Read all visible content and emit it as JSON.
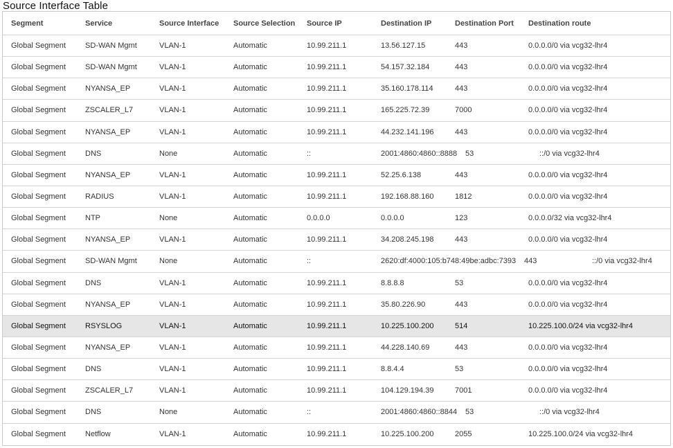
{
  "title": "Source Interface Table",
  "columns": [
    "Segment",
    "Service",
    "Source Interface",
    "Source Selection",
    "Source IP",
    "Destination IP",
    "Destination Port",
    "Destination route"
  ],
  "rows": [
    {
      "segment": "Global Segment",
      "service": "SD-WAN Mgmt",
      "iface": "VLAN-1",
      "selection": "Automatic",
      "src_ip": "10.99.211.1",
      "dst_ip": "13.56.127.15",
      "port": "443",
      "route": "0.0.0.0/0 via vcg32-lhr4"
    },
    {
      "segment": "Global Segment",
      "service": "SD-WAN Mgmt",
      "iface": "VLAN-1",
      "selection": "Automatic",
      "src_ip": "10.99.211.1",
      "dst_ip": "54.157.32.184",
      "port": "443",
      "route": "0.0.0.0/0 via vcg32-lhr4"
    },
    {
      "segment": "Global Segment",
      "service": "NYANSA_EP",
      "iface": "VLAN-1",
      "selection": "Automatic",
      "src_ip": "10.99.211.1",
      "dst_ip": "35.160.178.114",
      "port": "443",
      "route": "0.0.0.0/0 via vcg32-lhr4"
    },
    {
      "segment": "Global Segment",
      "service": "ZSCALER_L7",
      "iface": "VLAN-1",
      "selection": "Automatic",
      "src_ip": "10.99.211.1",
      "dst_ip": "165.225.72.39",
      "port": "7000",
      "route": "0.0.0.0/0 via vcg32-lhr4"
    },
    {
      "segment": "Global Segment",
      "service": "NYANSA_EP",
      "iface": "VLAN-1",
      "selection": "Automatic",
      "src_ip": "10.99.211.1",
      "dst_ip": "44.232.141.196",
      "port": "443",
      "route": "0.0.0.0/0 via vcg32-lhr4"
    },
    {
      "segment": "Global Segment",
      "service": "DNS",
      "iface": "None",
      "selection": "Automatic",
      "src_ip": "::",
      "dst_ip": "2001:4860:4860::8888",
      "port": "53",
      "route": "::/0 via vcg32-lhr4"
    },
    {
      "segment": "Global Segment",
      "service": "NYANSA_EP",
      "iface": "VLAN-1",
      "selection": "Automatic",
      "src_ip": "10.99.211.1",
      "dst_ip": "52.25.6.138",
      "port": "443",
      "route": "0.0.0.0/0 via vcg32-lhr4"
    },
    {
      "segment": "Global Segment",
      "service": "RADIUS",
      "iface": "VLAN-1",
      "selection": "Automatic",
      "src_ip": "10.99.211.1",
      "dst_ip": "192.168.88.160",
      "port": "1812",
      "route": "0.0.0.0/0 via vcg32-lhr4"
    },
    {
      "segment": "Global Segment",
      "service": "NTP",
      "iface": "None",
      "selection": "Automatic",
      "src_ip": "0.0.0.0",
      "dst_ip": "0.0.0.0",
      "port": "123",
      "route": "0.0.0.0/32 via vcg32-lhr4"
    },
    {
      "segment": "Global Segment",
      "service": "NYANSA_EP",
      "iface": "VLAN-1",
      "selection": "Automatic",
      "src_ip": "10.99.211.1",
      "dst_ip": "34.208.245.198",
      "port": "443",
      "route": "0.0.0.0/0 via vcg32-lhr4"
    },
    {
      "segment": "Global Segment",
      "service": "SD-WAN Mgmt",
      "iface": "None",
      "selection": "Automatic",
      "src_ip": "::",
      "dst_ip": "2620:df:4000:105:b748:49be:adbc:7393",
      "port": "443",
      "route": "::/0 via vcg32-lhr4"
    },
    {
      "segment": "Global Segment",
      "service": "DNS",
      "iface": "VLAN-1",
      "selection": "Automatic",
      "src_ip": "10.99.211.1",
      "dst_ip": "8.8.8.8",
      "port": "53",
      "route": "0.0.0.0/0 via vcg32-lhr4"
    },
    {
      "segment": "Global Segment",
      "service": "NYANSA_EP",
      "iface": "VLAN-1",
      "selection": "Automatic",
      "src_ip": "10.99.211.1",
      "dst_ip": "35.80.226.90",
      "port": "443",
      "route": "0.0.0.0/0 via vcg32-lhr4"
    },
    {
      "segment": "Global Segment",
      "service": "RSYSLOG",
      "iface": "VLAN-1",
      "selection": "Automatic",
      "src_ip": "10.99.211.1",
      "dst_ip": "10.225.100.200",
      "port": "514",
      "route": "10.225.100.0/24 via vcg32-lhr4",
      "selected": true
    },
    {
      "segment": "Global Segment",
      "service": "NYANSA_EP",
      "iface": "VLAN-1",
      "selection": "Automatic",
      "src_ip": "10.99.211.1",
      "dst_ip": "44.228.140.69",
      "port": "443",
      "route": "0.0.0.0/0 via vcg32-lhr4"
    },
    {
      "segment": "Global Segment",
      "service": "DNS",
      "iface": "VLAN-1",
      "selection": "Automatic",
      "src_ip": "10.99.211.1",
      "dst_ip": "8.8.4.4",
      "port": "53",
      "route": "0.0.0.0/0 via vcg32-lhr4"
    },
    {
      "segment": "Global Segment",
      "service": "ZSCALER_L7",
      "iface": "VLAN-1",
      "selection": "Automatic",
      "src_ip": "10.99.211.1",
      "dst_ip": "104.129.194.39",
      "port": "7001",
      "route": "0.0.0.0/0 via vcg32-lhr4"
    },
    {
      "segment": "Global Segment",
      "service": "DNS",
      "iface": "None",
      "selection": "Automatic",
      "src_ip": "::",
      "dst_ip": "2001:4860:4860::8844",
      "port": "53",
      "route": "::/0 via vcg32-lhr4"
    },
    {
      "segment": "Global Segment",
      "service": "Netflow",
      "iface": "VLAN-1",
      "selection": "Automatic",
      "src_ip": "10.99.211.1",
      "dst_ip": "10.225.100.200",
      "port": "2055",
      "route": "10.225.100.0/24 via vcg32-lhr4"
    }
  ]
}
